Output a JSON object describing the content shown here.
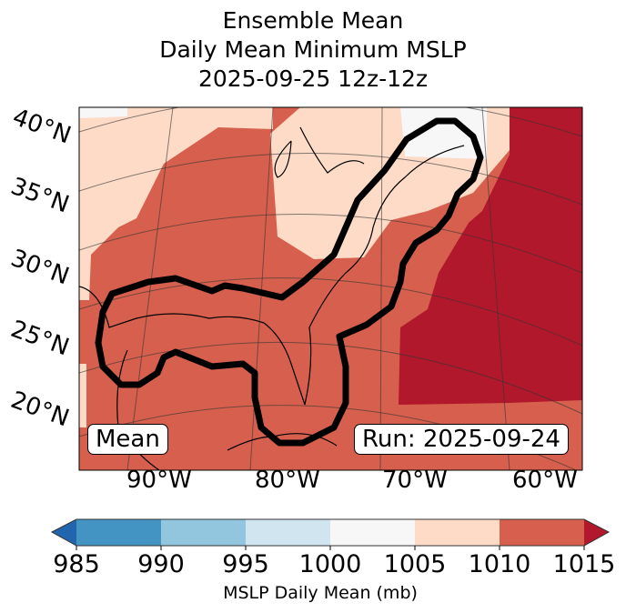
{
  "title": {
    "line1": "Ensemble Mean",
    "line2": "Daily Mean Minimum MSLP",
    "line3": "2025-09-25 12z-12z"
  },
  "map": {
    "lat_labels": [
      "40°N",
      "35°N",
      "30°N",
      "25°N",
      "20°N"
    ],
    "lon_labels": [
      "90°W",
      "80°W",
      "70°W",
      "60°W"
    ],
    "mean_label": "Mean",
    "run_label": "Run: 2025-09-24",
    "contour_color": "#000000"
  },
  "colorbar": {
    "ticks": [
      "985",
      "990",
      "995",
      "1000",
      "1005",
      "1010",
      "1015"
    ],
    "label": "MSLP Daily Mean (mb)",
    "colors": {
      "under": "#2166ac",
      "985-990": "#4393c3",
      "990-995": "#92c5de",
      "995-1000": "#d1e5f0",
      "1000-1005": "#f7f7f7",
      "1005-1010": "#fddbc7",
      "1010-1015": "#d6604d",
      "over": "#b2182b"
    }
  }
}
